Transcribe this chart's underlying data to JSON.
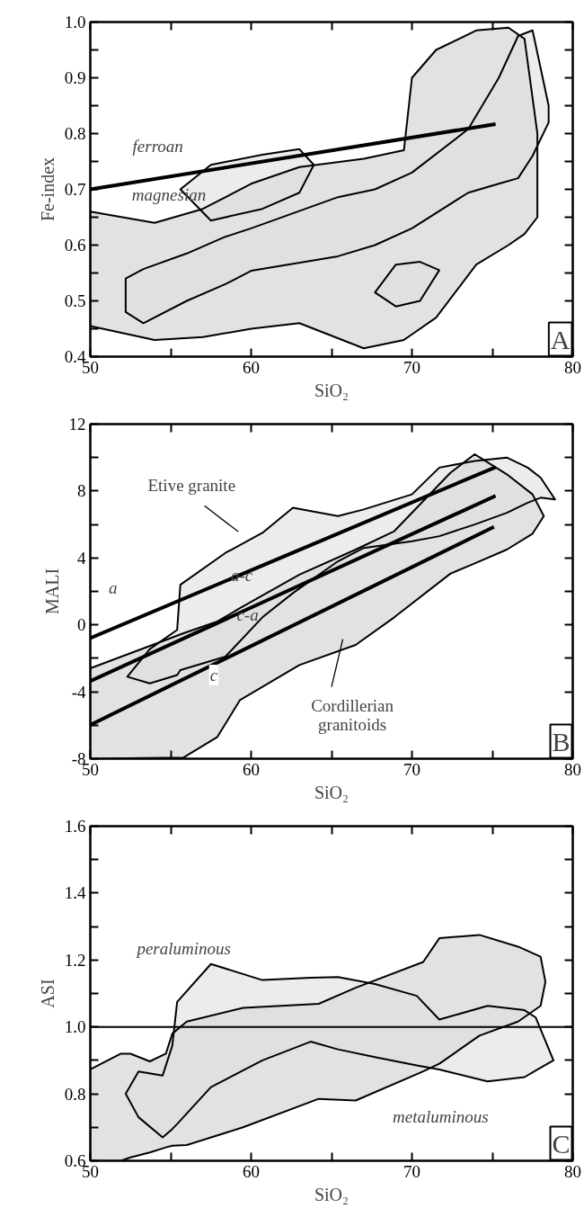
{
  "chart_data": [
    {
      "type": "line",
      "xlabel": "SiO₂",
      "ylabel": "Fe-index",
      "xlim": [
        50,
        80
      ],
      "ylim": [
        0.4,
        1.0
      ],
      "xticks": [
        50,
        {
          "value": 55,
          "label": null
        },
        60,
        {
          "value": 65,
          "label": null
        },
        70,
        {
          "value": 75,
          "label": null
        },
        80
      ],
      "yticks": [
        0.4,
        {
          "value": 0.45,
          "label": null
        },
        0.5,
        {
          "value": 0.55,
          "label": null
        },
        0.6,
        {
          "value": 0.65,
          "label": null
        },
        0.7,
        {
          "value": 0.75,
          "label": null
        },
        0.8,
        {
          "value": 0.85,
          "label": null
        },
        0.9,
        {
          "value": 0.95,
          "label": null
        },
        {
          "value": 1.0,
          "label": "1.0"
        }
      ],
      "series": [
        {
          "type": "area",
          "color": "#cfcfcf",
          "x": [
            50,
            54,
            57,
            60,
            63,
            67,
            69.5,
            70,
            71.5,
            74,
            76,
            77,
            77.8,
            77.8,
            77,
            76,
            74,
            71.5,
            70,
            69.5,
            67,
            63,
            60,
            57,
            54,
            50
          ],
          "values": [
            0.66,
            0.64,
            0.665,
            0.71,
            0.74,
            0.755,
            0.77,
            0.9,
            0.95,
            0.985,
            0.99,
            0.97,
            0.8,
            0.65,
            0.62,
            0.6,
            0.565,
            0.47,
            0.44,
            0.43,
            0.415,
            0.46,
            0.45,
            0.435,
            0.43,
            0.455
          ]
        },
        {
          "type": "area",
          "color": "#e0e0e0",
          "x": [
            52.2,
            53.3,
            56,
            58.4,
            60,
            65.4,
            67.7,
            70,
            73.5,
            75.4,
            76.6,
            77.5,
            78.5,
            78.5,
            77.5,
            76.6,
            75.4,
            73.5,
            70,
            67.7,
            65.4,
            60,
            58.4,
            56,
            53.3,
            52.2
          ],
          "values": [
            0.54,
            0.557,
            0.585,
            0.615,
            0.63,
            0.686,
            0.7,
            0.73,
            0.808,
            0.9,
            0.975,
            0.985,
            0.85,
            0.82,
            0.76,
            0.72,
            0.71,
            0.694,
            0.63,
            0.6,
            0.58,
            0.554,
            0.53,
            0.5,
            0.46,
            0.48
          ]
        },
        {
          "type": "area",
          "color": "#e0e0e0",
          "x": [
            55.6,
            57.5,
            60.7,
            63,
            63.9,
            63,
            60.7,
            57.5
          ],
          "values": [
            0.7,
            0.744,
            0.762,
            0.772,
            0.744,
            0.694,
            0.665,
            0.644
          ]
        },
        {
          "type": "area",
          "color": "#e0e0e0",
          "x": [
            67.7,
            69,
            70.5,
            71.7,
            70.5,
            69
          ],
          "values": [
            0.515,
            0.565,
            0.57,
            0.555,
            0.5,
            0.49
          ]
        },
        {
          "type": "line",
          "color": "#000000",
          "x": [
            50,
            75.2
          ],
          "values": [
            0.7,
            0.817
          ]
        }
      ],
      "annotations": [
        "ferroan",
        "magnesian",
        "A"
      ]
    },
    {
      "type": "line",
      "xlabel": "SiO₂",
      "ylabel": "MALI",
      "xlim": [
        50,
        80
      ],
      "ylim": [
        -8,
        12
      ],
      "xticks": [
        50,
        {
          "value": 55,
          "label": null
        },
        60,
        {
          "value": 65,
          "label": null
        },
        70,
        {
          "value": 75,
          "label": null
        },
        80
      ],
      "yticks": [
        -8,
        {
          "value": -6,
          "label": null
        },
        -4,
        {
          "value": -2,
          "label": null
        },
        0,
        {
          "value": 2,
          "label": null
        },
        4,
        {
          "value": 6,
          "label": null
        },
        8,
        {
          "value": 10,
          "label": null
        },
        12
      ],
      "series": [
        {
          "type": "area",
          "color": "#cfcfcf",
          "x": [
            50,
            55.8,
            57.9,
            59.3,
            63,
            66.5,
            68.9,
            72.4,
            73.9,
            75.9,
            77.5,
            78.2,
            77.5,
            75.9,
            73.9,
            72.4,
            68.9,
            66.5,
            63,
            59.3,
            57.9,
            55.8,
            50
          ],
          "values": [
            -2.6,
            -0.5,
            0.2,
            1.0,
            3.0,
            4.5,
            5.6,
            9.1,
            10.2,
            9.0,
            7.8,
            6.5,
            5.45,
            4.5,
            3.67,
            3.07,
            0.45,
            -1.2,
            -2.4,
            -4.5,
            -6.7,
            -7.93,
            -8
          ]
        },
        {
          "type": "area",
          "color": "#e0e0e0",
          "x": [
            52.3,
            53.7,
            55.4,
            55.6,
            58.4,
            60.7,
            62.6,
            65.4,
            67,
            70,
            71.7,
            73.9,
            75.9,
            77.2,
            78,
            78.9,
            78,
            77.2,
            75.9,
            73.9,
            71.7,
            70,
            67,
            65.4,
            62.6,
            60.7,
            58.4,
            55.6,
            55.4,
            53.7
          ],
          "values": [
            -3.1,
            -1.45,
            -0.3,
            2.4,
            4.3,
            5.5,
            7.0,
            6.5,
            6.9,
            7.8,
            9.4,
            9.8,
            10.0,
            9.4,
            8.8,
            7.5,
            7.6,
            7.3,
            6.7,
            6.0,
            5.3,
            5.0,
            4.6,
            3.8,
            1.9,
            0.45,
            -1.9,
            -2.7,
            -3.0,
            -3.5
          ]
        },
        {
          "type": "line",
          "color": "#000000",
          "x": [
            50,
            75.2
          ],
          "values": [
            -0.79,
            9.43
          ]
        },
        {
          "type": "line",
          "color": "#000000",
          "x": [
            50,
            75.2
          ],
          "values": [
            -3.36,
            7.71
          ]
        },
        {
          "type": "line",
          "color": "#000000",
          "x": [
            50,
            75.1
          ],
          "values": [
            -5.98,
            5.86
          ]
        },
        {
          "type": "line",
          "color": "#000000",
          "x": [
            57.1,
            59.2
          ],
          "values": [
            7.12,
            5.57
          ]
        },
        {
          "type": "line",
          "color": "#000000",
          "x": [
            65.7,
            65.0
          ],
          "values": [
            -0.86,
            -3.71
          ]
        }
      ],
      "annotations": [
        "Etive granite",
        "Cordillerian\ngranitoids",
        "a",
        "a-c",
        "c-a",
        "c",
        "B"
      ]
    },
    {
      "type": "line",
      "xlabel": "SiO₂",
      "ylabel": "ASI",
      "xlim": [
        50,
        80
      ],
      "ylim": [
        0.6,
        1.6
      ],
      "xticks": [
        50,
        {
          "value": 55,
          "label": null
        },
        60,
        {
          "value": 65,
          "label": null
        },
        70,
        {
          "value": 75,
          "label": null
        },
        80
      ],
      "yticks": [
        0.6,
        {
          "value": 0.7,
          "label": null
        },
        0.8,
        {
          "value": 0.9,
          "label": null
        },
        {
          "value": 1.0,
          "label": "1.0"
        },
        {
          "value": 1.1,
          "label": null
        },
        1.2,
        {
          "value": 1.3,
          "label": null
        },
        1.4,
        {
          "value": 1.5,
          "label": null
        },
        1.6
      ],
      "series": [
        {
          "type": "area",
          "color": "#cfcfcf",
          "x": [
            50,
            51.9,
            52.5,
            53.7,
            54.7,
            55.1,
            56,
            59.5,
            64.2,
            66.5,
            70.7,
            71.7,
            74.2,
            76.6,
            78,
            78.3,
            78,
            76.6,
            74.2,
            71.7,
            70.7,
            66.5,
            64.2,
            59.5,
            56,
            55.1,
            54.7,
            53.7,
            52.5,
            51.9,
            50
          ],
          "values": [
            0.873,
            0.92,
            0.92,
            0.897,
            0.92,
            0.98,
            1.016,
            1.057,
            1.069,
            1.117,
            1.194,
            1.265,
            1.275,
            1.24,
            1.21,
            1.135,
            1.063,
            1.016,
            0.974,
            0.89,
            0.867,
            0.78,
            0.785,
            0.7,
            0.647,
            0.645,
            0.64,
            0.625,
            0.61,
            0.6,
            0.6
          ]
        },
        {
          "type": "area",
          "color": "#e0e0e0",
          "x": [
            52.2,
            53,
            54.5,
            55.1,
            55.4,
            57.5,
            60.7,
            63.7,
            65.4,
            67.7,
            70.3,
            71.7,
            74.7,
            77,
            77.7,
            78.8,
            77.7,
            77,
            74.7,
            71.7,
            70.3,
            67.7,
            65.4,
            63.7,
            60.7,
            57.5,
            55.4,
            55.1,
            54.5,
            53
          ],
          "values": [
            0.8,
            0.867,
            0.855,
            0.944,
            1.075,
            1.188,
            1.14,
            1.147,
            1.149,
            1.128,
            1.093,
            1.022,
            1.063,
            1.05,
            1.028,
            0.9,
            0.87,
            0.85,
            0.837,
            0.873,
            0.885,
            0.91,
            0.933,
            0.956,
            0.9,
            0.82,
            0.71,
            0.695,
            0.67,
            0.73
          ]
        }
      ],
      "ref_lines": [
        {
          "axis": "y",
          "value": 1.0
        }
      ],
      "annotations": [
        "peraluminous",
        "metaluminous",
        "C"
      ]
    }
  ]
}
